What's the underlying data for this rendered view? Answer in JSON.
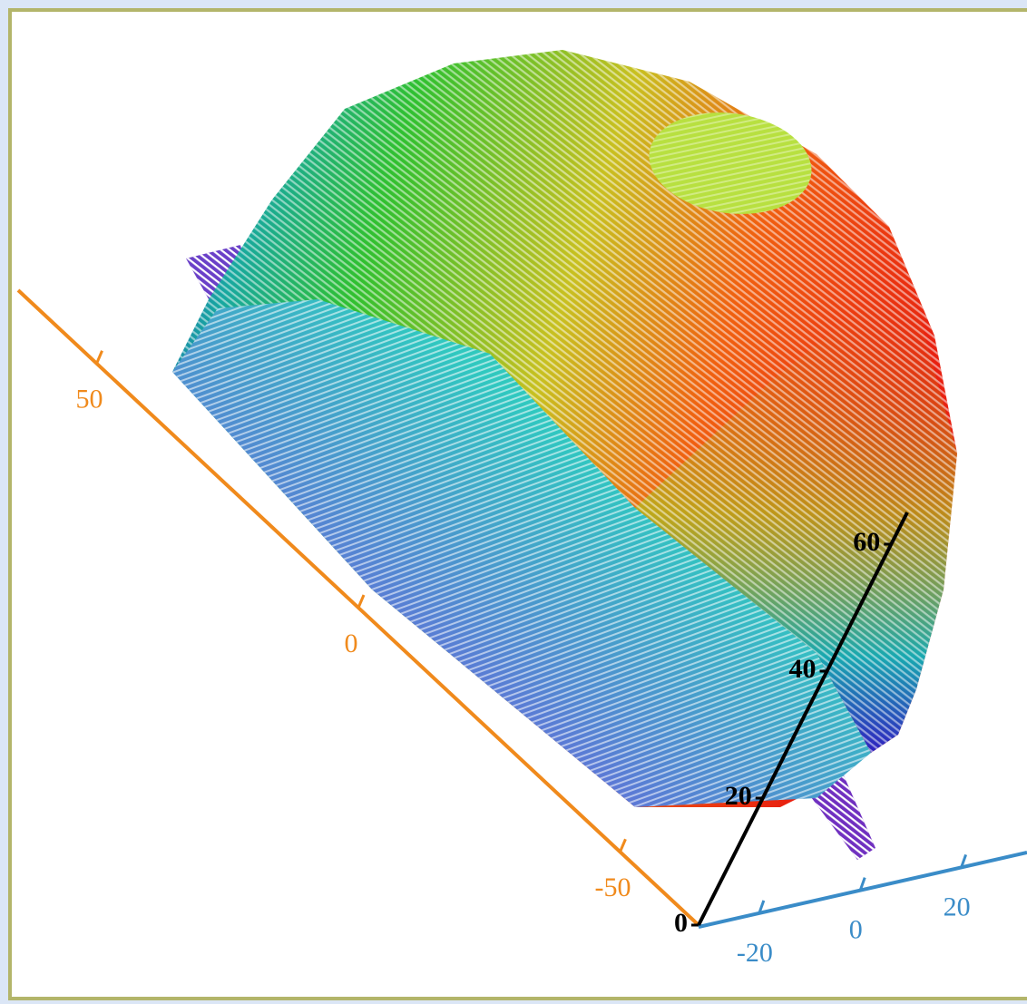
{
  "chart_data": {
    "type": "surface3d",
    "axes": [
      {
        "color": "#f08a1c",
        "lim": [
          65,
          -65
        ],
        "ticks": [
          50,
          0,
          -50
        ]
      },
      {
        "color": "#3a8cc8",
        "lim": [
          -32,
          33
        ],
        "ticks": [
          -20,
          0,
          20
        ]
      },
      {
        "color": "#000000",
        "lim": [
          0,
          65
        ],
        "ticks": [
          0,
          20,
          40,
          60
        ]
      }
    ]
  }
}
